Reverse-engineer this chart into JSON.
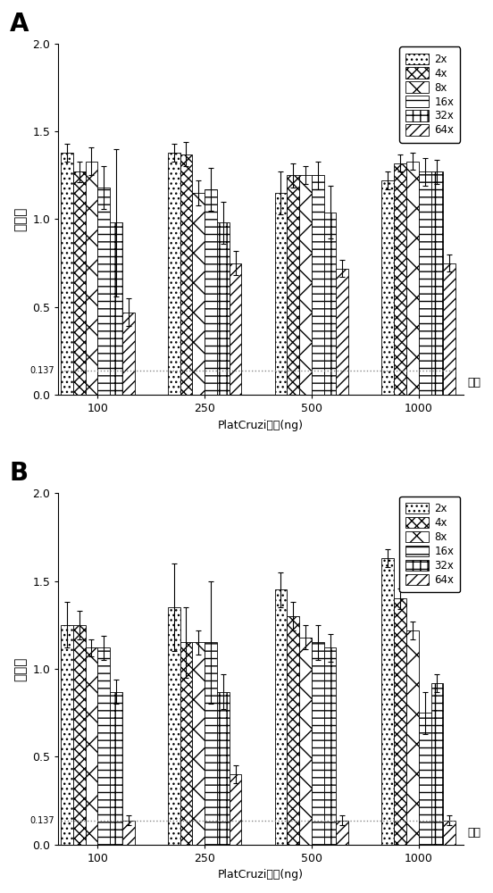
{
  "panel_A": {
    "categories": [
      "100",
      "250",
      "500",
      "1000"
    ],
    "series_labels": [
      "2x",
      "4x",
      "8x",
      "16x",
      "32x",
      "64x"
    ],
    "values": [
      [
        1.38,
        1.38,
        1.15,
        1.22
      ],
      [
        1.27,
        1.37,
        1.25,
        1.32
      ],
      [
        1.33,
        1.15,
        1.25,
        1.33
      ],
      [
        1.18,
        1.17,
        1.25,
        1.27
      ],
      [
        0.98,
        0.98,
        1.04,
        1.27
      ],
      [
        0.47,
        0.75,
        0.72,
        0.75
      ]
    ],
    "errors": [
      [
        0.05,
        0.05,
        0.12,
        0.05
      ],
      [
        0.06,
        0.07,
        0.07,
        0.05
      ],
      [
        0.08,
        0.07,
        0.05,
        0.05
      ],
      [
        0.12,
        0.12,
        0.08,
        0.08
      ],
      [
        0.42,
        0.12,
        0.15,
        0.07
      ],
      [
        0.08,
        0.07,
        0.05,
        0.05
      ]
    ],
    "cutoff": 0.137,
    "ylabel": "吸光度",
    "xlabel": "PlatCruzi的量(ng)",
    "panel_label": "A",
    "cutoff_label": "空白"
  },
  "panel_B": {
    "categories": [
      "100",
      "250",
      "500",
      "1000"
    ],
    "series_labels": [
      "2x",
      "4x",
      "8x",
      "16x",
      "32x",
      "64x"
    ],
    "values": [
      [
        1.25,
        1.35,
        1.45,
        1.63
      ],
      [
        1.25,
        1.15,
        1.3,
        1.4
      ],
      [
        1.12,
        1.15,
        1.18,
        1.22
      ],
      [
        1.12,
        1.15,
        1.15,
        0.75
      ],
      [
        0.87,
        0.87,
        1.12,
        0.92
      ],
      [
        0.137,
        0.4,
        0.137,
        0.137
      ]
    ],
    "errors": [
      [
        0.13,
        0.25,
        0.1,
        0.05
      ],
      [
        0.08,
        0.2,
        0.08,
        0.06
      ],
      [
        0.05,
        0.07,
        0.07,
        0.05
      ],
      [
        0.07,
        0.35,
        0.1,
        0.12
      ],
      [
        0.07,
        0.1,
        0.08,
        0.05
      ],
      [
        0.03,
        0.05,
        0.03,
        0.03
      ]
    ],
    "cutoff": 0.137,
    "ylabel": "吸光度",
    "xlabel": "PlatCruzi的量(ng)",
    "panel_label": "B",
    "cutoff_label": "空白"
  },
  "figure": {
    "bg_color": "#ffffff",
    "bar_edge_color": "#000000",
    "ylim": [
      0,
      2.0
    ],
    "yticks": [
      0.0,
      0.5,
      1.0,
      1.5,
      2.0
    ],
    "cutoff_linestyle": ":",
    "cutoff_color": "#888888"
  }
}
